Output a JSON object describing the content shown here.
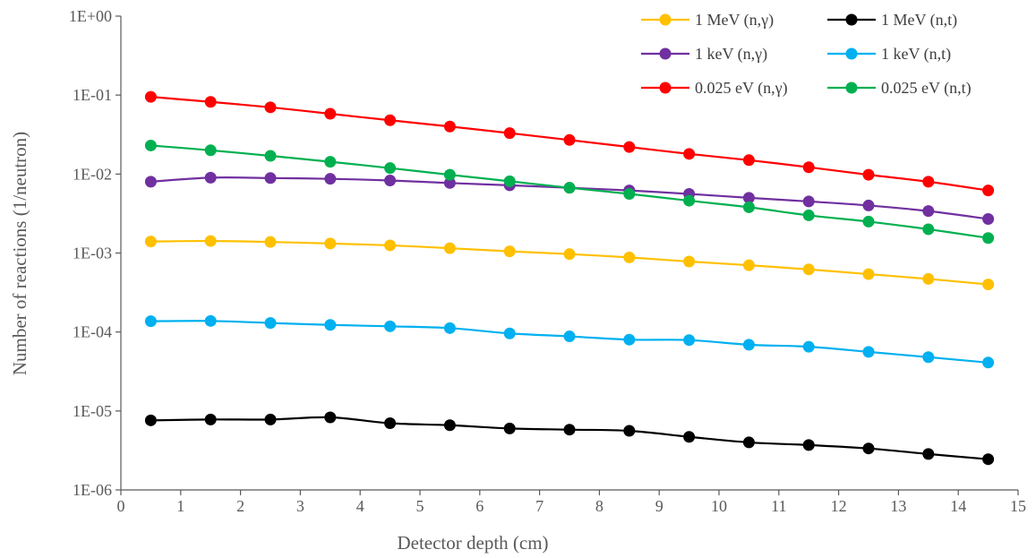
{
  "chart_data": {
    "type": "line",
    "xlabel": "Detector depth (cm)",
    "ylabel": "Number of reactions (1/neutron)",
    "xlim": [
      0,
      15
    ],
    "ylim": [
      1e-06,
      1
    ],
    "yscale": "log",
    "grid": false,
    "legend_position": "top-right",
    "x_ticks": [
      "0",
      "1",
      "2",
      "3",
      "4",
      "5",
      "6",
      "7",
      "8",
      "9",
      "10",
      "11",
      "12",
      "13",
      "14",
      "15"
    ],
    "y_ticks": [
      "1E-06",
      "1E-05",
      "1E-04",
      "1E-03",
      "1E-02",
      "1E-01",
      "1E+00"
    ],
    "x": [
      0.5,
      1.5,
      2.5,
      3.5,
      4.5,
      5.5,
      6.5,
      7.5,
      8.5,
      9.5,
      10.5,
      11.5,
      12.5,
      13.5,
      14.5
    ],
    "series": [
      {
        "name": "1 MeV (n,γ)",
        "color": "#FFC000",
        "values": [
          0.0014,
          0.00142,
          0.00138,
          0.00132,
          0.00125,
          0.00115,
          0.00105,
          0.00097,
          0.00088,
          0.00078,
          0.0007,
          0.00062,
          0.00054,
          0.00047,
          0.0004
        ]
      },
      {
        "name": "1 MeV (n,t)",
        "color": "#000000",
        "values": [
          7.6e-06,
          7.8e-06,
          7.8e-06,
          8.3e-06,
          7e-06,
          6.6e-06,
          6e-06,
          5.8e-06,
          5.6e-06,
          4.7e-06,
          4e-06,
          3.7e-06,
          3.35e-06,
          2.85e-06,
          2.45e-06
        ]
      },
      {
        "name": "1 keV (n,γ)",
        "color": "#7030A0",
        "values": [
          0.008,
          0.009,
          0.0089,
          0.0087,
          0.0083,
          0.0077,
          0.0072,
          0.0067,
          0.0062,
          0.0056,
          0.005,
          0.0045,
          0.004,
          0.0034,
          0.0027
        ]
      },
      {
        "name": "1 keV (n,t)",
        "color": "#00B0F0",
        "values": [
          0.000137,
          0.000138,
          0.00013,
          0.000123,
          0.000118,
          0.000112,
          9.6e-05,
          8.8e-05,
          8e-05,
          7.9e-05,
          6.9e-05,
          6.5e-05,
          5.6e-05,
          4.8e-05,
          4.1e-05
        ]
      },
      {
        "name": "0.025 eV (n,γ)",
        "color": "#FF0000",
        "values": [
          0.095,
          0.082,
          0.07,
          0.058,
          0.048,
          0.04,
          0.033,
          0.027,
          0.022,
          0.018,
          0.015,
          0.0122,
          0.0098,
          0.008,
          0.0062
        ]
      },
      {
        "name": "0.025 eV (n,t)",
        "color": "#00B050",
        "values": [
          0.023,
          0.02,
          0.017,
          0.0143,
          0.0119,
          0.0098,
          0.0081,
          0.0067,
          0.0056,
          0.0046,
          0.0038,
          0.003,
          0.0025,
          0.002,
          0.00155
        ]
      }
    ]
  }
}
